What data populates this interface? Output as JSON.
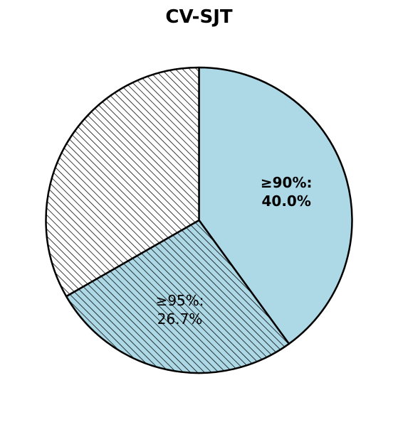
{
  "chart_data": {
    "type": "pie",
    "title": "CV-SJT",
    "slices": [
      {
        "label": "≥90%",
        "value": 40.0,
        "display": "≥90%:\n40.0%",
        "color": "#add8e6",
        "hatched": false,
        "bold_label": true
      },
      {
        "label": "≥95%",
        "value": 26.7,
        "display": "≥95%:\n26.7%",
        "color": "#add8e6",
        "hatched": true,
        "bold_label": false
      },
      {
        "label": "",
        "value": 33.3,
        "display": "",
        "color": "#ffffff",
        "hatched": true,
        "bold_label": false
      }
    ],
    "start_angle_deg": 90,
    "direction": "clockwise",
    "edge_color": "#000000",
    "legend": "none"
  }
}
